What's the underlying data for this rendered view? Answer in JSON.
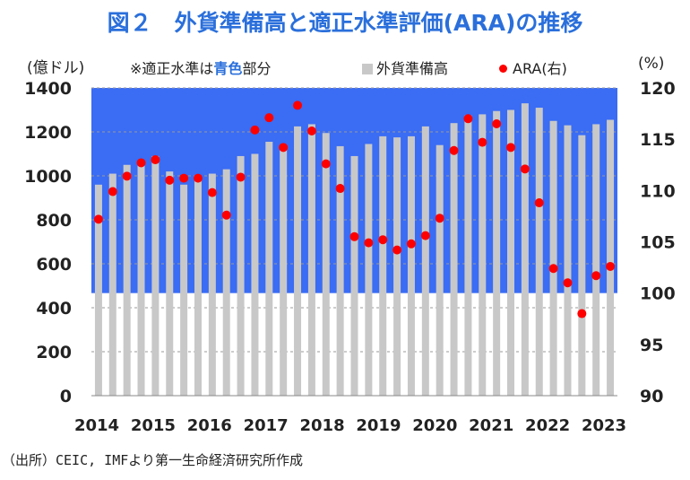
{
  "title": "図２　外貨準備高と適正水準評価(ARA)の推移",
  "left_unit": "(億ドル)",
  "right_unit": "(%)",
  "note_prefix": "※適正水準は",
  "note_highlight": "青色",
  "note_suffix": "部分",
  "source": "（出所）CEIC, IMFより第一生命経済研究所作成",
  "colors": {
    "bar": "#c8c8c8",
    "band": "#3a6cf4",
    "dot": "#ff0000",
    "title": "#2a6fdb"
  },
  "chart_data": {
    "type": "bar+scatter",
    "title": "外貨準備高と適正水準評価(ARA)の推移",
    "x_tick_labels": [
      "2014",
      "2015",
      "2016",
      "2017",
      "2018",
      "2019",
      "2020",
      "2021",
      "2022",
      "2023"
    ],
    "left_axis": {
      "label": "(億ドル)",
      "min": 0,
      "max": 1400,
      "ticks": [
        0,
        200,
        400,
        600,
        800,
        1000,
        1200,
        1400
      ]
    },
    "right_axis": {
      "label": "(%)",
      "min": 90,
      "max": 120,
      "ticks": [
        90,
        95,
        100,
        105,
        110,
        115,
        120
      ]
    },
    "adequacy_band_right": [
      100,
      120
    ],
    "series": [
      {
        "name": "外貨準備高",
        "axis": "left",
        "type": "bar",
        "values": [
          960,
          1010,
          1050,
          1065,
          1090,
          1020,
          960,
          1000,
          1010,
          1030,
          1090,
          1100,
          1155,
          1140,
          1225,
          1235,
          1195,
          1135,
          1090,
          1145,
          1180,
          1175,
          1180,
          1225,
          1140,
          1240,
          1275,
          1280,
          1295,
          1300,
          1330,
          1310,
          1250,
          1230,
          1185,
          1235,
          1255
        ]
      },
      {
        "name": "ARA(右)",
        "axis": "right",
        "type": "scatter",
        "values": [
          107.2,
          109.9,
          111.4,
          112.7,
          113.0,
          111.0,
          111.2,
          111.2,
          109.8,
          107.6,
          111.3,
          115.9,
          117.1,
          114.2,
          118.3,
          115.8,
          112.6,
          110.2,
          105.5,
          104.9,
          105.2,
          104.2,
          104.8,
          105.6,
          107.3,
          113.9,
          117.0,
          114.7,
          116.5,
          114.2,
          112.1,
          108.8,
          102.4,
          101.0,
          98.0,
          101.7,
          102.6
        ]
      }
    ]
  }
}
